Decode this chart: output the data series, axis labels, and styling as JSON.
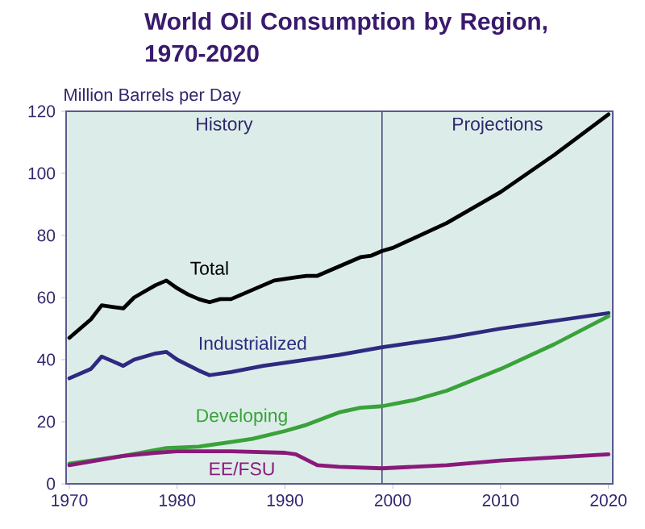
{
  "chart_data": {
    "type": "line",
    "title": "World Oil Consumption by Region, 1970-2020",
    "ylabel": "Million Barrels per Day",
    "xlim": [
      1969.7,
      2020.4
    ],
    "xticks": [
      1970,
      1980,
      1990,
      2000,
      2010,
      2020
    ],
    "ylim": [
      0,
      120
    ],
    "yticks": [
      0,
      20,
      40,
      60,
      80,
      100,
      120
    ],
    "marker": "none",
    "line_style": "solid",
    "bands": [
      {
        "axis": "x",
        "from": 1969.7,
        "to": 1999,
        "label": "History",
        "color": "#dcede9"
      },
      {
        "axis": "x",
        "from": 1999,
        "to": 2020.4,
        "label": "Projections",
        "color": "#dcede9"
      }
    ],
    "ref_lines": [
      {
        "axis": "x",
        "value": 1999,
        "color": "#4a4a7a"
      }
    ],
    "series": [
      {
        "name": "Total",
        "color": "#000000",
        "x": [
          1970,
          1971,
          1972,
          1973,
          1974,
          1975,
          1976,
          1977,
          1978,
          1979,
          1980,
          1981,
          1982,
          1983,
          1984,
          1985,
          1986,
          1987,
          1988,
          1989,
          1990,
          1991,
          1992,
          1993,
          1994,
          1995,
          1996,
          1997,
          1998,
          1999,
          2000,
          2005,
          2010,
          2015,
          2020
        ],
        "values": [
          47,
          50,
          53,
          57.5,
          57,
          56.5,
          60,
          62,
          64,
          65.5,
          63,
          61,
          59.5,
          58.5,
          59.5,
          59.5,
          61,
          62.5,
          64,
          65.5,
          66,
          66.5,
          67,
          67,
          68.5,
          70,
          71.5,
          73,
          73.5,
          75,
          76,
          84,
          94,
          106,
          119
        ]
      },
      {
        "name": "Industrialized",
        "color": "#2e2a80",
        "x": [
          1970,
          1972,
          1973,
          1974,
          1975,
          1976,
          1978,
          1979,
          1980,
          1982,
          1983,
          1985,
          1988,
          1990,
          1995,
          1999,
          2005,
          2010,
          2015,
          2020
        ],
        "values": [
          34,
          37,
          41,
          39.5,
          38,
          40,
          42,
          42.5,
          40,
          36.5,
          35,
          36,
          38,
          39,
          41.5,
          44,
          47,
          50,
          52.5,
          55
        ]
      },
      {
        "name": "Developing",
        "color": "#3aa23a",
        "x": [
          1970,
          1975,
          1979,
          1982,
          1985,
          1987,
          1990,
          1992,
          1995,
          1997,
          1999,
          2002,
          2005,
          2010,
          2015,
          2020
        ],
        "values": [
          6.5,
          9,
          11.5,
          12,
          13.5,
          14.5,
          17,
          19,
          23,
          24.5,
          25,
          27,
          30,
          37,
          45,
          54
        ]
      },
      {
        "name": "EE/FSU",
        "color": "#8a1a7a",
        "x": [
          1970,
          1975,
          1978,
          1980,
          1985,
          1990,
          1991,
          1993,
          1995,
          1999,
          2005,
          2010,
          2015,
          2020
        ],
        "values": [
          6,
          9,
          10,
          10.5,
          10.5,
          10,
          9.5,
          6,
          5.5,
          5,
          6,
          7.5,
          8.5,
          9.5
        ]
      }
    ]
  }
}
